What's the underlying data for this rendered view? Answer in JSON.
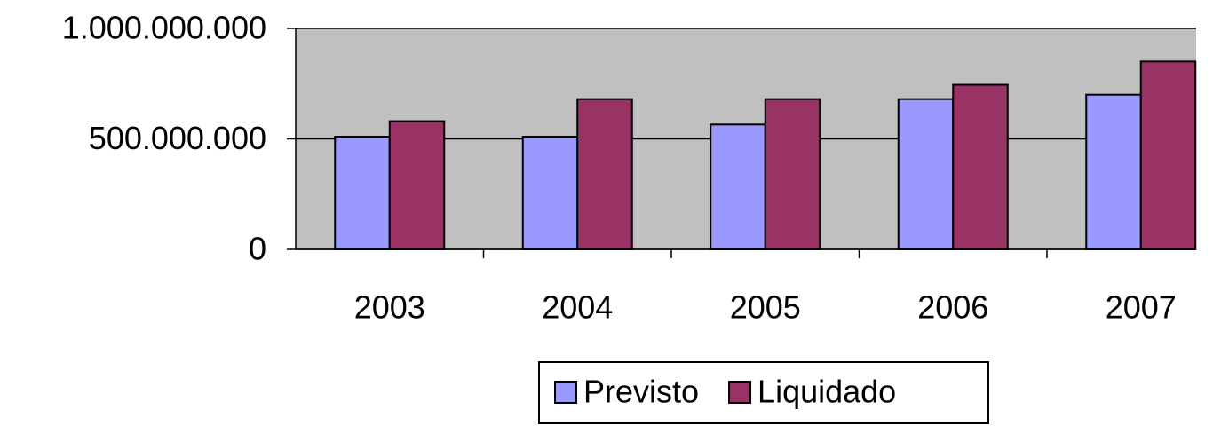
{
  "chart_data": {
    "type": "bar",
    "categories": [
      "2003",
      "2004",
      "2005",
      "2006",
      "2007"
    ],
    "series": [
      {
        "name": "Previsto",
        "color": "#9999ff",
        "values": [
          510000000,
          510000000,
          565000000,
          680000000,
          700000000
        ]
      },
      {
        "name": "Liquidado",
        "color": "#993366",
        "values": [
          580000000,
          680000000,
          680000000,
          745000000,
          850000000
        ]
      }
    ],
    "ylim": [
      0,
      1000000000
    ],
    "yticks": [
      0,
      {
        "value": 500000000,
        "label": "500.000.000"
      },
      {
        "value": 1000000000,
        "label": "1.000.000.000"
      }
    ],
    "grid": true,
    "legend": "bottom"
  }
}
